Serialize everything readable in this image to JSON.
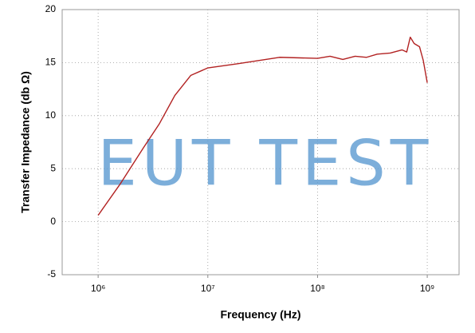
{
  "chart_data": {
    "type": "line",
    "x_label": "Frequency (Hz)",
    "y_label": "Transfer Impedance (db Ω)",
    "watermark": "EUT TEST",
    "x": [
      1000000,
      1600000,
      2600000,
      3600000,
      5000000,
      7000000,
      10000000,
      19000000,
      45000000,
      100000000,
      130000000,
      170000000,
      220000000,
      280000000,
      350000000,
      460000000,
      590000000,
      650000000,
      700000000,
      760000000,
      850000000,
      920000000,
      1000000000
    ],
    "values": [
      0.6,
      3.6,
      7.0,
      9.2,
      11.9,
      13.8,
      14.5,
      14.9,
      15.5,
      15.4,
      15.6,
      15.3,
      15.6,
      15.5,
      15.8,
      15.9,
      16.2,
      16.0,
      17.4,
      16.8,
      16.5,
      15.2,
      13.1
    ],
    "color": "#b22222",
    "x_log": true,
    "xlim": [
      470000,
      1950000000
    ],
    "ylim": [
      -5,
      20
    ],
    "xticks": [
      {
        "value": 1000000,
        "label": "10⁶"
      },
      {
        "value": 10000000,
        "label": "10⁷"
      },
      {
        "value": 100000000,
        "label": "10⁸"
      },
      {
        "value": 1000000000,
        "label": "10⁹"
      }
    ],
    "yticks": [
      -5,
      0,
      5,
      10,
      15,
      20
    ],
    "grid": true
  }
}
